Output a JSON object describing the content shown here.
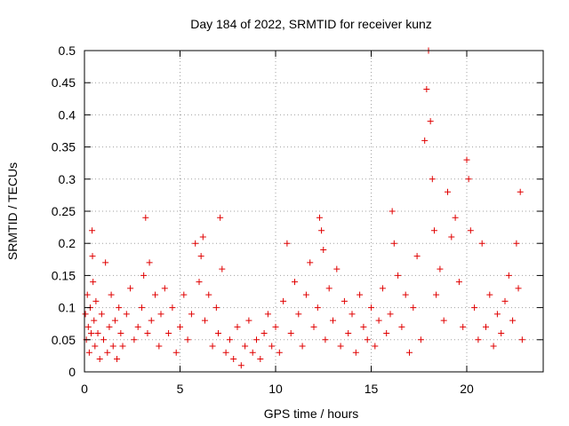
{
  "chart_data": {
    "type": "scatter",
    "title": "Day 184 of 2022, SRMTID for receiver kunz",
    "xlabel": "GPS time / hours",
    "ylabel": "SRMTID / TECUs",
    "xlim": [
      0,
      24
    ],
    "ylim": [
      0,
      0.5
    ],
    "grid": true,
    "marker": "+",
    "series_color": "#e00000",
    "x_ticks": [
      0,
      5,
      10,
      15,
      20
    ],
    "x_tick_labels": [
      "0",
      "5",
      "10",
      "15",
      "20"
    ],
    "y_ticks": [
      0,
      0.05,
      0.1,
      0.15,
      0.2,
      0.25,
      0.3,
      0.35,
      0.4,
      0.45,
      0.5
    ],
    "y_tick_labels": [
      "0",
      "0.05",
      "0.1",
      "0.15",
      "0.2",
      "0.25",
      "0.3",
      "0.35",
      "0.4",
      "0.45",
      "0.5"
    ],
    "series": [
      {
        "name": "SRMTID",
        "points": [
          [
            0.05,
            0.09
          ],
          [
            0.1,
            0.05
          ],
          [
            0.15,
            0.12
          ],
          [
            0.2,
            0.07
          ],
          [
            0.25,
            0.03
          ],
          [
            0.3,
            0.1
          ],
          [
            0.35,
            0.06
          ],
          [
            0.4,
            0.22
          ],
          [
            0.42,
            0.18
          ],
          [
            0.45,
            0.14
          ],
          [
            0.5,
            0.08
          ],
          [
            0.55,
            0.04
          ],
          [
            0.6,
            0.11
          ],
          [
            0.7,
            0.06
          ],
          [
            0.8,
            0.02
          ],
          [
            0.9,
            0.09
          ],
          [
            1.0,
            0.05
          ],
          [
            1.1,
            0.17
          ],
          [
            1.2,
            0.03
          ],
          [
            1.3,
            0.07
          ],
          [
            1.4,
            0.12
          ],
          [
            1.5,
            0.04
          ],
          [
            1.6,
            0.08
          ],
          [
            1.7,
            0.02
          ],
          [
            1.8,
            0.1
          ],
          [
            1.9,
            0.06
          ],
          [
            2.0,
            0.04
          ],
          [
            2.2,
            0.09
          ],
          [
            2.4,
            0.13
          ],
          [
            2.6,
            0.05
          ],
          [
            2.8,
            0.07
          ],
          [
            3.0,
            0.1
          ],
          [
            3.1,
            0.15
          ],
          [
            3.2,
            0.24
          ],
          [
            3.3,
            0.06
          ],
          [
            3.4,
            0.17
          ],
          [
            3.5,
            0.08
          ],
          [
            3.7,
            0.12
          ],
          [
            3.9,
            0.04
          ],
          [
            4.0,
            0.09
          ],
          [
            4.2,
            0.13
          ],
          [
            4.4,
            0.06
          ],
          [
            4.6,
            0.1
          ],
          [
            4.8,
            0.03
          ],
          [
            5.0,
            0.07
          ],
          [
            5.2,
            0.12
          ],
          [
            5.4,
            0.05
          ],
          [
            5.6,
            0.09
          ],
          [
            5.8,
            0.2
          ],
          [
            6.0,
            0.14
          ],
          [
            6.1,
            0.18
          ],
          [
            6.2,
            0.21
          ],
          [
            6.3,
            0.08
          ],
          [
            6.5,
            0.12
          ],
          [
            6.7,
            0.04
          ],
          [
            6.9,
            0.1
          ],
          [
            7.0,
            0.06
          ],
          [
            7.1,
            0.24
          ],
          [
            7.2,
            0.16
          ],
          [
            7.4,
            0.03
          ],
          [
            7.6,
            0.05
          ],
          [
            7.8,
            0.02
          ],
          [
            8.0,
            0.07
          ],
          [
            8.2,
            0.01
          ],
          [
            8.4,
            0.04
          ],
          [
            8.6,
            0.08
          ],
          [
            8.8,
            0.03
          ],
          [
            9.0,
            0.05
          ],
          [
            9.2,
            0.02
          ],
          [
            9.4,
            0.06
          ],
          [
            9.6,
            0.09
          ],
          [
            9.8,
            0.04
          ],
          [
            10.0,
            0.07
          ],
          [
            10.2,
            0.03
          ],
          [
            10.4,
            0.11
          ],
          [
            10.6,
            0.2
          ],
          [
            10.8,
            0.06
          ],
          [
            11.0,
            0.14
          ],
          [
            11.2,
            0.09
          ],
          [
            11.4,
            0.04
          ],
          [
            11.6,
            0.12
          ],
          [
            11.8,
            0.17
          ],
          [
            12.0,
            0.07
          ],
          [
            12.2,
            0.1
          ],
          [
            12.3,
            0.24
          ],
          [
            12.4,
            0.22
          ],
          [
            12.5,
            0.19
          ],
          [
            12.6,
            0.05
          ],
          [
            12.8,
            0.13
          ],
          [
            13.0,
            0.08
          ],
          [
            13.2,
            0.16
          ],
          [
            13.4,
            0.04
          ],
          [
            13.6,
            0.11
          ],
          [
            13.8,
            0.06
          ],
          [
            14.0,
            0.09
          ],
          [
            14.2,
            0.03
          ],
          [
            14.4,
            0.12
          ],
          [
            14.6,
            0.07
          ],
          [
            14.8,
            0.05
          ],
          [
            15.0,
            0.1
          ],
          [
            15.2,
            0.04
          ],
          [
            15.4,
            0.08
          ],
          [
            15.6,
            0.13
          ],
          [
            15.8,
            0.06
          ],
          [
            16.0,
            0.09
          ],
          [
            16.1,
            0.25
          ],
          [
            16.2,
            0.2
          ],
          [
            16.4,
            0.15
          ],
          [
            16.6,
            0.07
          ],
          [
            16.8,
            0.12
          ],
          [
            17.0,
            0.03
          ],
          [
            17.2,
            0.1
          ],
          [
            17.4,
            0.18
          ],
          [
            17.6,
            0.05
          ],
          [
            17.8,
            0.36
          ],
          [
            17.9,
            0.44
          ],
          [
            18.0,
            0.5
          ],
          [
            18.1,
            0.39
          ],
          [
            18.2,
            0.3
          ],
          [
            18.3,
            0.22
          ],
          [
            18.4,
            0.12
          ],
          [
            18.6,
            0.16
          ],
          [
            18.8,
            0.08
          ],
          [
            19.0,
            0.28
          ],
          [
            19.2,
            0.21
          ],
          [
            19.4,
            0.24
          ],
          [
            19.6,
            0.14
          ],
          [
            19.8,
            0.07
          ],
          [
            20.0,
            0.33
          ],
          [
            20.1,
            0.3
          ],
          [
            20.2,
            0.22
          ],
          [
            20.4,
            0.1
          ],
          [
            20.6,
            0.05
          ],
          [
            20.8,
            0.2
          ],
          [
            21.0,
            0.07
          ],
          [
            21.2,
            0.12
          ],
          [
            21.4,
            0.04
          ],
          [
            21.6,
            0.09
          ],
          [
            21.8,
            0.06
          ],
          [
            22.0,
            0.11
          ],
          [
            22.2,
            0.15
          ],
          [
            22.4,
            0.08
          ],
          [
            22.6,
            0.2
          ],
          [
            22.7,
            0.13
          ],
          [
            22.8,
            0.28
          ],
          [
            22.9,
            0.05
          ]
        ]
      }
    ]
  }
}
